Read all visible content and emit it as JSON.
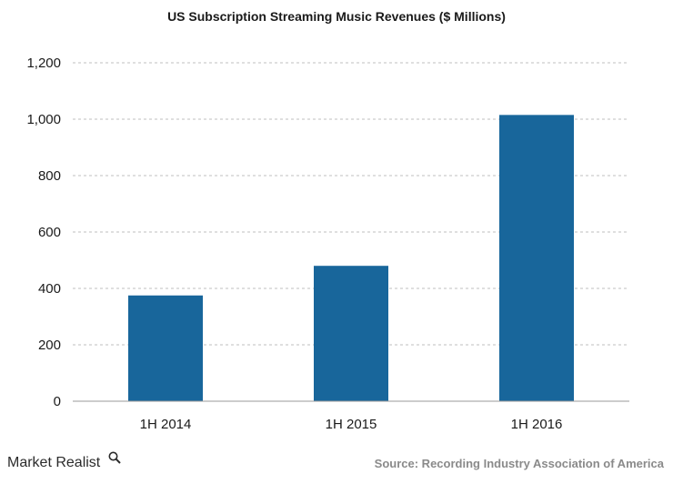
{
  "chart_data": {
    "type": "bar",
    "title": "US Subscription Streaming Music Revenues ($ Millions)",
    "categories": [
      "1H 2014",
      "1H 2015",
      "1H 2016"
    ],
    "values": [
      375,
      480,
      1015
    ],
    "ylim": [
      0,
      1200
    ],
    "yticks": [
      0,
      200,
      400,
      600,
      800,
      1000,
      1200
    ],
    "ytick_labels": [
      "0",
      "200",
      "400",
      "600",
      "800",
      "1,000",
      "1,200"
    ],
    "grid": true,
    "bar_color": "#18669b",
    "grid_color": "#bfbfbf"
  },
  "branding": {
    "logo_text": "Market Realist",
    "source": "Source: Recording Industry Association of America"
  }
}
